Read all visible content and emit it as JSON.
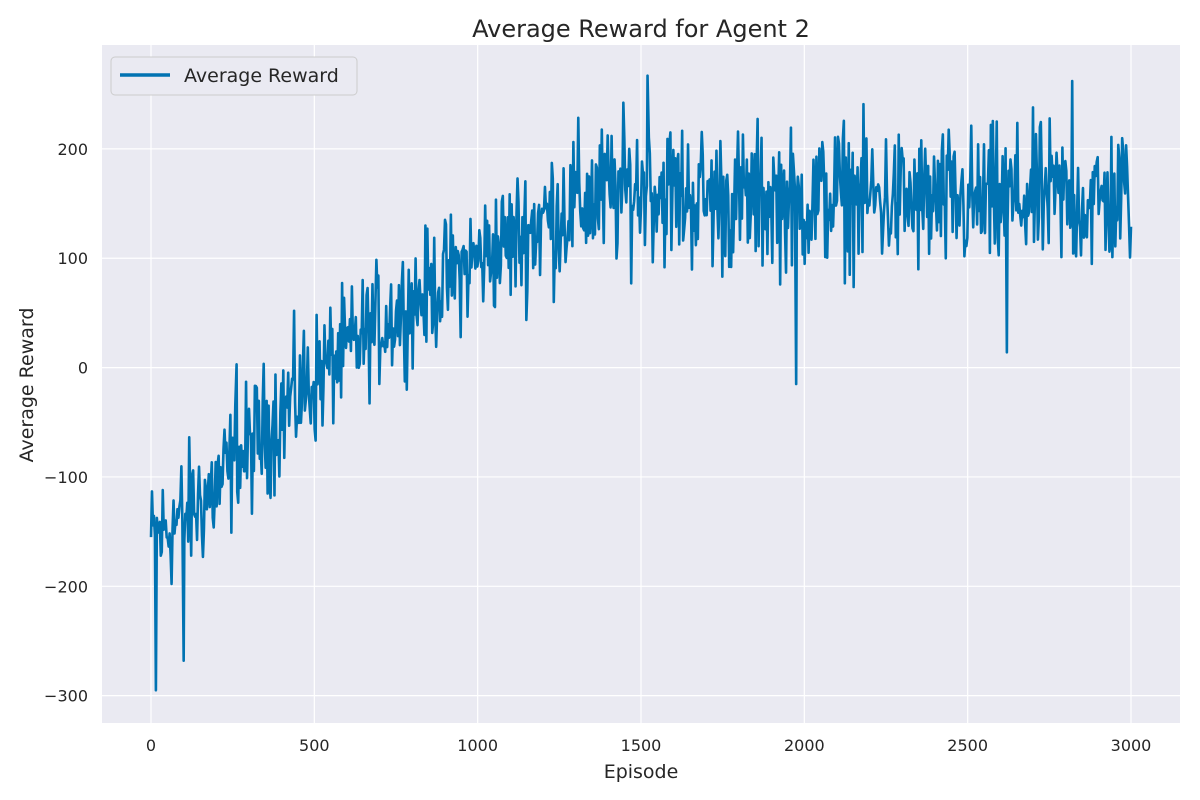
{
  "chart_data": {
    "type": "line",
    "title": "Average Reward for Agent 2",
    "xlabel": "Episode",
    "ylabel": "Average Reward",
    "xlim": [
      -150,
      3150
    ],
    "ylim": [
      -325,
      295
    ],
    "x_ticks": [
      0,
      500,
      1000,
      1500,
      2000,
      2500,
      3000
    ],
    "x_tick_labels": [
      "0",
      "500",
      "1000",
      "1500",
      "2000",
      "2500",
      "3000"
    ],
    "y_ticks": [
      -300,
      -200,
      -100,
      0,
      100,
      200
    ],
    "y_tick_labels": [
      "−300",
      "−200",
      "−100",
      "0",
      "100",
      "200"
    ],
    "grid": true,
    "legend_position": "top-left",
    "colors": {
      "line": "#0173b2",
      "plot_background": "#eaeaf2",
      "grid": "#ffffff"
    },
    "series": [
      {
        "name": "Average Reward",
        "x_start": 0,
        "x_end": 3000,
        "trend_x": [
          0,
          100,
          200,
          300,
          400,
          500,
          600,
          700,
          800,
          900,
          1000,
          1100,
          1200,
          1300,
          1400,
          1500,
          1600,
          1700,
          1800,
          1900,
          2000,
          2100,
          2200,
          2300,
          2400,
          2500,
          2600,
          2700,
          2800,
          2900,
          3000
        ],
        "trend_y": [
          -160,
          -135,
          -110,
          -75,
          -40,
          -10,
          15,
          40,
          60,
          80,
          100,
          115,
          135,
          150,
          158,
          165,
          160,
          155,
          152,
          155,
          150,
          158,
          155,
          152,
          150,
          150,
          152,
          155,
          155,
          150,
          160
        ],
        "noise_amplitude": [
          45,
          50,
          50,
          50,
          50,
          50,
          45,
          45,
          45,
          45,
          45,
          50,
          55,
          55,
          55,
          55,
          55,
          55,
          55,
          55,
          50,
          55,
          55,
          55,
          55,
          55,
          55,
          55,
          55,
          55,
          55
        ],
        "extremes": [
          {
            "x": 15,
            "y": -295
          },
          {
            "x": 100,
            "y": -268
          },
          {
            "x": 262,
            "y": 3
          },
          {
            "x": 1520,
            "y": 267
          },
          {
            "x": 1975,
            "y": -15
          },
          {
            "x": 2620,
            "y": 14
          },
          {
            "x": 2820,
            "y": 262
          }
        ]
      }
    ]
  }
}
